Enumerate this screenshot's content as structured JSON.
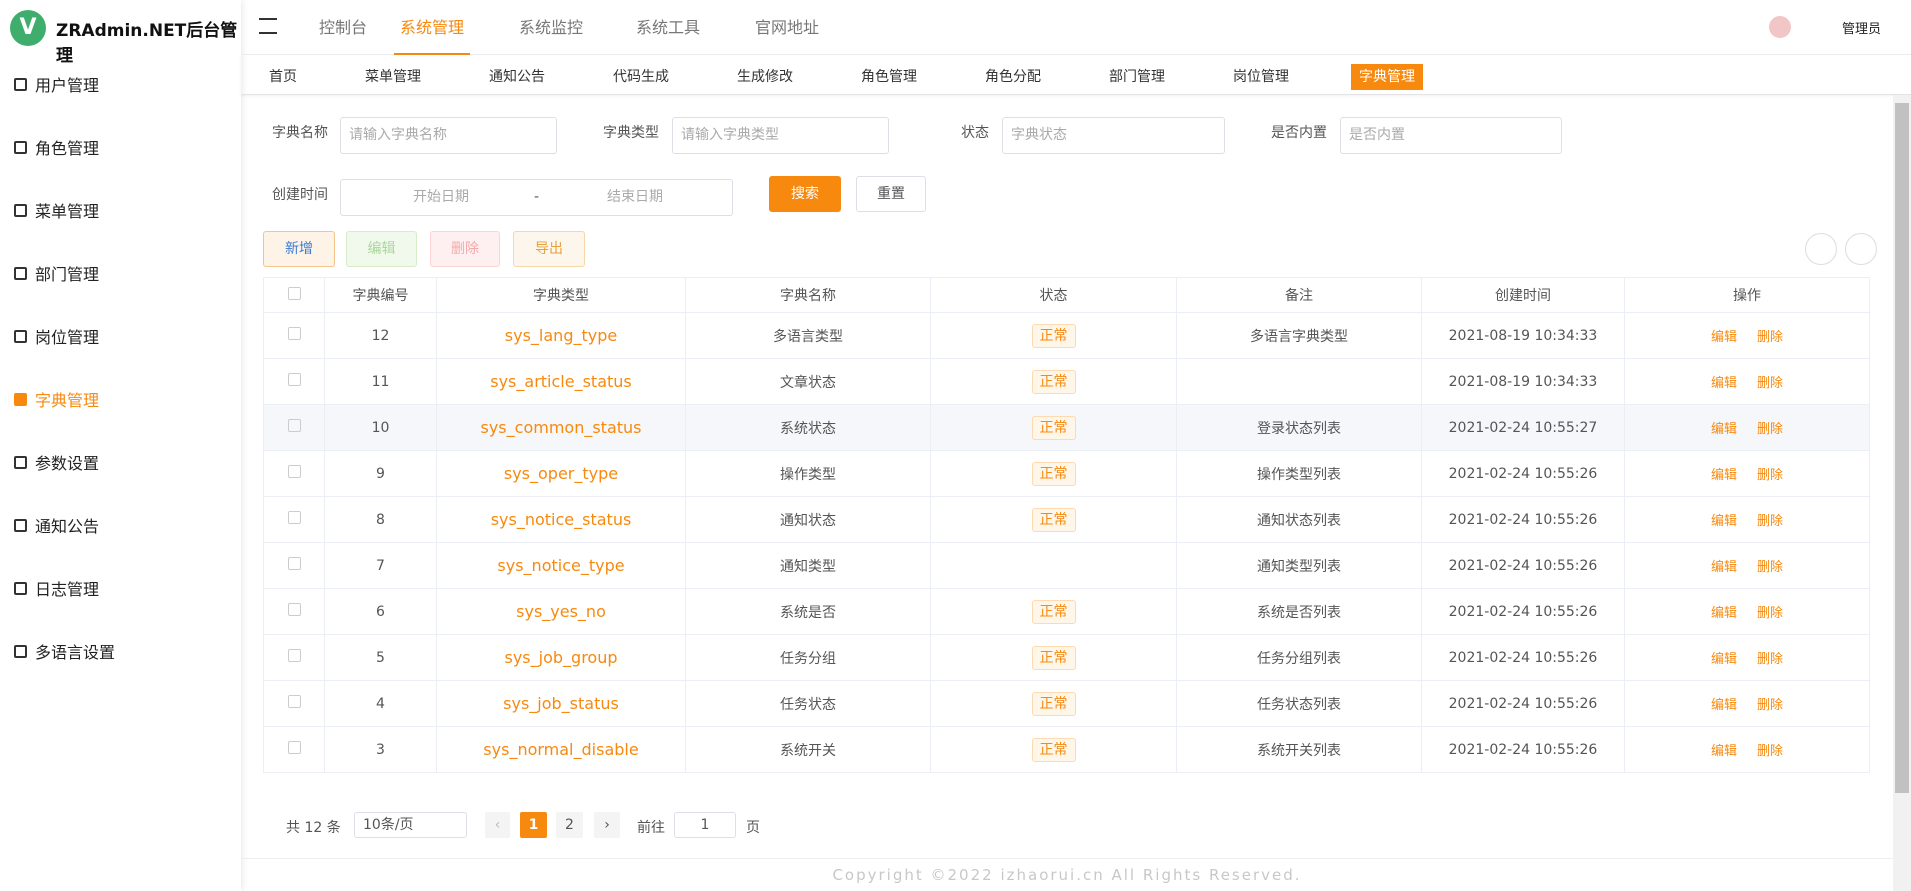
{
  "header": {
    "logo_letter": "V",
    "title": "ZRAdmin.NET后台管理",
    "nav": [
      "控制台",
      "系统管理",
      "系统监控",
      "系统工具",
      "官网地址"
    ],
    "active_nav": 1,
    "user": "管理员"
  },
  "sidebar": {
    "items": [
      "用户管理",
      "角色管理",
      "菜单管理",
      "部门管理",
      "岗位管理",
      "字典管理",
      "参数设置",
      "通知公告",
      "日志管理",
      "多语言设置"
    ],
    "active": 5
  },
  "tabs": {
    "items": [
      "首页",
      "菜单管理",
      "通知公告",
      "代码生成",
      "生成修改",
      "角色管理",
      "角色分配",
      "部门管理",
      "岗位管理",
      "字典管理"
    ],
    "active": 9
  },
  "search": {
    "dict_name_label": "字典名称",
    "dict_name_placeholder": "请输入字典名称",
    "dict_type_label": "字典类型",
    "dict_type_placeholder": "请输入字典类型",
    "status_label": "状态",
    "status_placeholder": "字典状态",
    "builtin_label": "是否内置",
    "builtin_placeholder": "是否内置",
    "time_label": "创建时间",
    "start_placeholder": "开始日期",
    "range_sep": "-",
    "end_placeholder": "结束日期",
    "search_button": "搜索",
    "reset_button": "重置"
  },
  "toolbar": {
    "add": "新增",
    "edit": "编辑",
    "delete": "删除",
    "export": "导出"
  },
  "table": {
    "columns": [
      "字典编号",
      "字典类型",
      "字典名称",
      "状态",
      "备注",
      "创建时间",
      "操作"
    ],
    "rows": [
      [
        "12",
        "sys_lang_type",
        "多语言类型",
        "正常",
        "多语言字典类型",
        "2021-08-19 10:34:33"
      ],
      [
        "11",
        "sys_article_status",
        "文章状态",
        "正常",
        null,
        "2021-08-19 10:34:33"
      ],
      [
        "10",
        "sys_common_status",
        "系统状态",
        "正常",
        "登录状态列表",
        "2021-02-24 10:55:27"
      ],
      [
        "9",
        "sys_oper_type",
        "操作类型",
        "正常",
        "操作类型列表",
        "2021-02-24 10:55:26"
      ],
      [
        "8",
        "sys_notice_status",
        "通知状态",
        "正常",
        "通知状态列表",
        "2021-02-24 10:55:26"
      ],
      [
        "7",
        "sys_notice_type",
        "通知类型",
        null,
        "通知类型列表",
        "2021-02-24 10:55:26"
      ],
      [
        "6",
        "sys_yes_no",
        "系统是否",
        "正常",
        "系统是否列表",
        "2021-02-24 10:55:26"
      ],
      [
        "5",
        "sys_job_group",
        "任务分组",
        "正常",
        "任务分组列表",
        "2021-02-24 10:55:26"
      ],
      [
        "4",
        "sys_job_status",
        "任务状态",
        "正常",
        "任务状态列表",
        "2021-02-24 10:55:26"
      ],
      [
        "3",
        "sys_normal_disable",
        "系统开关",
        "正常",
        "系统开关列表",
        "2021-02-24 10:55:26"
      ]
    ],
    "actions": [
      "编辑",
      "删除"
    ],
    "highlight_row": 2
  },
  "pagination": {
    "total": "共 12 条",
    "page_size": "10条/页",
    "pages": [
      "1",
      "2"
    ],
    "current": 0,
    "goto_label": "前往",
    "goto_value": "1",
    "goto_suffix": "页"
  },
  "footer": {
    "copyright": "Copyright ©2022 izhaorui.cn All Rights Reserved."
  }
}
